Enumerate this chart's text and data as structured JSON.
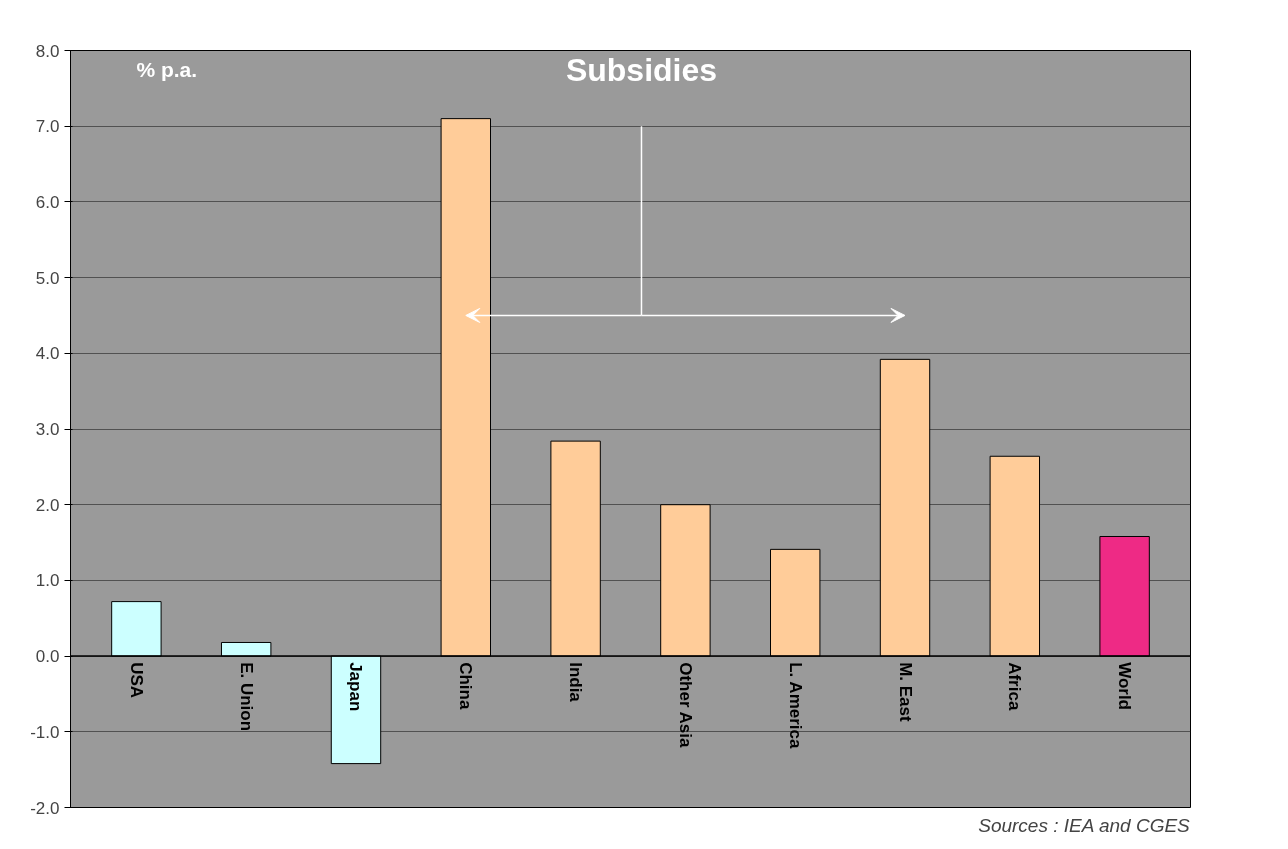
{
  "chart_data": {
    "type": "bar",
    "categories": [
      "USA",
      "E. Union",
      "Japan",
      "China",
      "India",
      "Other Asia",
      "L. America",
      "M. East",
      "Africa",
      "World"
    ],
    "values": [
      0.72,
      0.18,
      -1.42,
      7.1,
      2.84,
      2.0,
      1.41,
      3.92,
      2.64,
      1.58
    ],
    "colors": [
      "#ccffff",
      "#ccffff",
      "#ccffff",
      "#ffcc99",
      "#ffcc99",
      "#ffcc99",
      "#ffcc99",
      "#ffcc99",
      "#ffcc99",
      "#ee2a85"
    ],
    "ylim": [
      -2,
      8
    ],
    "yticks": [
      {
        "value": -2,
        "label": "-2.0"
      },
      {
        "value": -1,
        "label": "-1.0"
      },
      {
        "value": 0,
        "label": "0.0"
      },
      {
        "value": 1,
        "label": "1.0"
      },
      {
        "value": 2,
        "label": "2.0"
      },
      {
        "value": 3,
        "label": "3.0"
      },
      {
        "value": 4,
        "label": "4.0"
      },
      {
        "value": 5,
        "label": "5.0"
      },
      {
        "value": 6,
        "label": "6.0"
      },
      {
        "value": 7,
        "label": "7.0"
      },
      {
        "value": 8,
        "label": "8.0"
      }
    ],
    "grid": "y",
    "annotations": [
      "% p.a.",
      "Subsidies",
      "Sources : IEA and CGES"
    ]
  }
}
